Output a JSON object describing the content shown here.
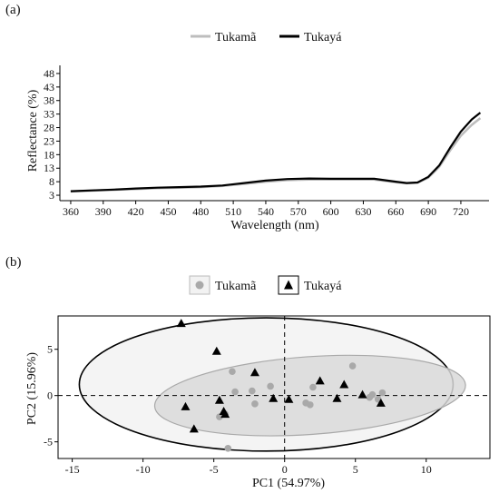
{
  "panels": {
    "a_label": "(a)",
    "b_label": "(b)"
  },
  "colors": {
    "tukama_line": "#bdbdbd",
    "tukaya_line": "#000000",
    "tukama_point": "#a9a9a9",
    "tukaya_point": "#000000",
    "tukama_ellipse_fill": "#d9d9d9",
    "tukama_ellipse_stroke": "#a9a9a9",
    "tukaya_ellipse_fill": "#f4f4f4",
    "tukaya_ellipse_stroke": "#000000"
  },
  "chart_data": [
    {
      "type": "line",
      "panel": "(a)",
      "xlabel": "Wavelength (nm)",
      "ylabel": "Reflectance (%)",
      "xlim": [
        350,
        746
      ],
      "ylim": [
        1,
        51
      ],
      "xticks": [
        360,
        390,
        420,
        450,
        480,
        510,
        540,
        570,
        600,
        630,
        660,
        690,
        720
      ],
      "yticks": [
        3,
        8,
        13,
        18,
        23,
        28,
        33,
        38,
        43,
        48
      ],
      "legend_position": "top",
      "grid": false,
      "series": [
        {
          "name": "Tukamã",
          "x": [
            360,
            380,
            400,
            420,
            440,
            460,
            480,
            500,
            520,
            540,
            560,
            580,
            600,
            620,
            640,
            660,
            670,
            680,
            690,
            700,
            710,
            720,
            730,
            738
          ],
          "values": [
            4.4,
            4.7,
            5.0,
            5.3,
            5.6,
            5.8,
            6.0,
            6.4,
            7.2,
            8.0,
            8.6,
            8.8,
            8.8,
            8.8,
            8.8,
            7.8,
            7.4,
            7.6,
            9.5,
            13.5,
            19.5,
            25.0,
            29.0,
            31.5
          ]
        },
        {
          "name": "Tukayá",
          "x": [
            360,
            380,
            400,
            420,
            440,
            460,
            480,
            500,
            520,
            540,
            560,
            580,
            600,
            620,
            640,
            660,
            670,
            680,
            690,
            700,
            710,
            720,
            730,
            738
          ],
          "values": [
            4.5,
            4.8,
            5.1,
            5.5,
            5.8,
            6.0,
            6.2,
            6.6,
            7.5,
            8.4,
            9.0,
            9.2,
            9.1,
            9.1,
            9.1,
            8.0,
            7.5,
            7.7,
            9.8,
            14.0,
            20.5,
            26.5,
            31.0,
            33.5
          ]
        }
      ]
    },
    {
      "type": "scatter",
      "panel": "(b)",
      "xlabel": "PC1 (54.97%)",
      "ylabel": "PC2 (15.96%)",
      "xlim": [
        -16,
        14.5
      ],
      "ylim": [
        -6.8,
        8.6
      ],
      "xticks": [
        -15,
        -10,
        -5,
        0,
        5,
        10
      ],
      "yticks": [
        -5,
        0,
        5
      ],
      "legend_position": "top",
      "reference_lines": {
        "x": 0,
        "y": 0,
        "style": "dashed"
      },
      "series": [
        {
          "name": "Tukamã",
          "marker": "circle",
          "points": [
            [
              -3.7,
              2.6
            ],
            [
              -3.5,
              0.4
            ],
            [
              -2.3,
              0.5
            ],
            [
              -2.1,
              -0.9
            ],
            [
              -4.6,
              -2.3
            ],
            [
              -4.2,
              -2.0
            ],
            [
              -4.0,
              -5.7
            ],
            [
              -1.0,
              1.0
            ],
            [
              1.5,
              -0.8
            ],
            [
              1.8,
              -1.0
            ],
            [
              2.0,
              0.9
            ],
            [
              4.8,
              3.2
            ],
            [
              6.0,
              -0.2
            ],
            [
              6.2,
              0.1
            ],
            [
              6.6,
              -0.4
            ],
            [
              6.9,
              0.3
            ]
          ]
        },
        {
          "name": "Tukayá",
          "marker": "triangle",
          "points": [
            [
              -7.3,
              7.8
            ],
            [
              -4.8,
              4.8
            ],
            [
              -7.0,
              -1.2
            ],
            [
              -6.4,
              -3.6
            ],
            [
              -4.6,
              -0.5
            ],
            [
              -4.3,
              -1.7
            ],
            [
              -4.2,
              -2.0
            ],
            [
              -2.1,
              2.5
            ],
            [
              -0.8,
              -0.3
            ],
            [
              0.3,
              -0.4
            ],
            [
              2.5,
              1.6
            ],
            [
              3.7,
              -0.3
            ],
            [
              4.2,
              1.2
            ],
            [
              5.5,
              0.1
            ],
            [
              6.8,
              -0.8
            ]
          ]
        }
      ],
      "ellipses": [
        {
          "name": "Tukayá",
          "cx": -1.3,
          "cy": 1.2,
          "rx": 13.2,
          "ry": 7.2,
          "angle_deg": 0
        },
        {
          "name": "Tukamã",
          "cx": 1.8,
          "cy": 0.0,
          "rx": 11.0,
          "ry": 4.2,
          "angle_deg": 4
        }
      ]
    }
  ]
}
